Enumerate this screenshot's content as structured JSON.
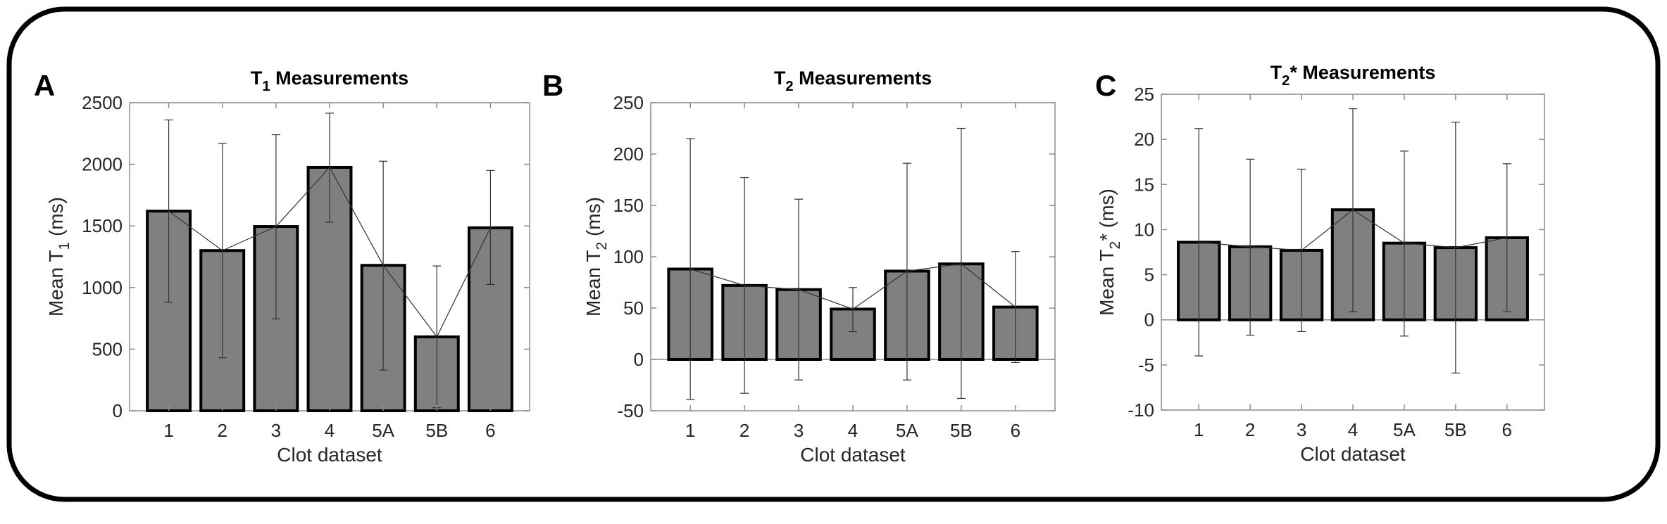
{
  "chart_data": [
    {
      "type": "bar",
      "panel_label": "A",
      "title": {
        "main": "T",
        "sub": "1",
        "rest": " Measurements"
      },
      "xlabel": "Clot dataset",
      "ylabel": {
        "main": "Mean T",
        "sub": "1",
        "rest": " (ms)"
      },
      "categories": [
        "1",
        "2",
        "3",
        "4",
        "5A",
        "5B",
        "6"
      ],
      "values": [
        1620,
        1300,
        1495,
        1975,
        1180,
        600,
        1485
      ],
      "error_upper": [
        2360,
        2170,
        2240,
        2415,
        2025,
        1175,
        1950
      ],
      "error_lower": [
        880,
        430,
        745,
        1530,
        330,
        25,
        1025
      ],
      "ylim": [
        0,
        2500
      ],
      "yticks": [
        0,
        500,
        1000,
        1500,
        2000,
        2500
      ],
      "connecting_line": true
    },
    {
      "type": "bar",
      "panel_label": "B",
      "title": {
        "main": "T",
        "sub": "2",
        "rest": " Measurements"
      },
      "xlabel": "Clot dataset",
      "ylabel": {
        "main": "Mean T",
        "sub": "2",
        "rest": " (ms)"
      },
      "categories": [
        "1",
        "2",
        "3",
        "4",
        "5A",
        "5B",
        "6"
      ],
      "values": [
        88,
        72,
        68,
        49,
        86,
        93,
        51
      ],
      "error_upper": [
        215,
        177,
        156,
        70,
        191,
        225,
        105
      ],
      "error_lower": [
        -39,
        -33,
        -20,
        27,
        -20,
        -38,
        -3
      ],
      "ylim": [
        -50,
        250
      ],
      "yticks": [
        -50,
        0,
        50,
        100,
        150,
        200,
        250
      ],
      "connecting_line": true
    },
    {
      "type": "bar",
      "panel_label": "C",
      "title": {
        "main": "T",
        "sub": "2",
        "rest": "* Measurements"
      },
      "xlabel": "Clot dataset",
      "ylabel": {
        "main": "Mean T",
        "sub": "2",
        "rest": "* (ms)"
      },
      "categories": [
        "1",
        "2",
        "3",
        "4",
        "5A",
        "5B",
        "6"
      ],
      "values": [
        8.6,
        8.1,
        7.7,
        12.2,
        8.5,
        8.0,
        9.1
      ],
      "error_upper": [
        21.2,
        17.8,
        16.7,
        23.4,
        18.7,
        21.9,
        17.3
      ],
      "error_lower": [
        -4.0,
        -1.7,
        -1.3,
        0.9,
        -1.8,
        -5.9,
        0.9
      ],
      "ylim": [
        -10,
        25
      ],
      "yticks": [
        -10,
        -5,
        0,
        5,
        10,
        15,
        20,
        25
      ],
      "connecting_line": true
    }
  ],
  "colors": {
    "bar_fill": "#808080",
    "bar_edge": "#000000",
    "axis": "#8c8c8c",
    "text": "#262626"
  }
}
